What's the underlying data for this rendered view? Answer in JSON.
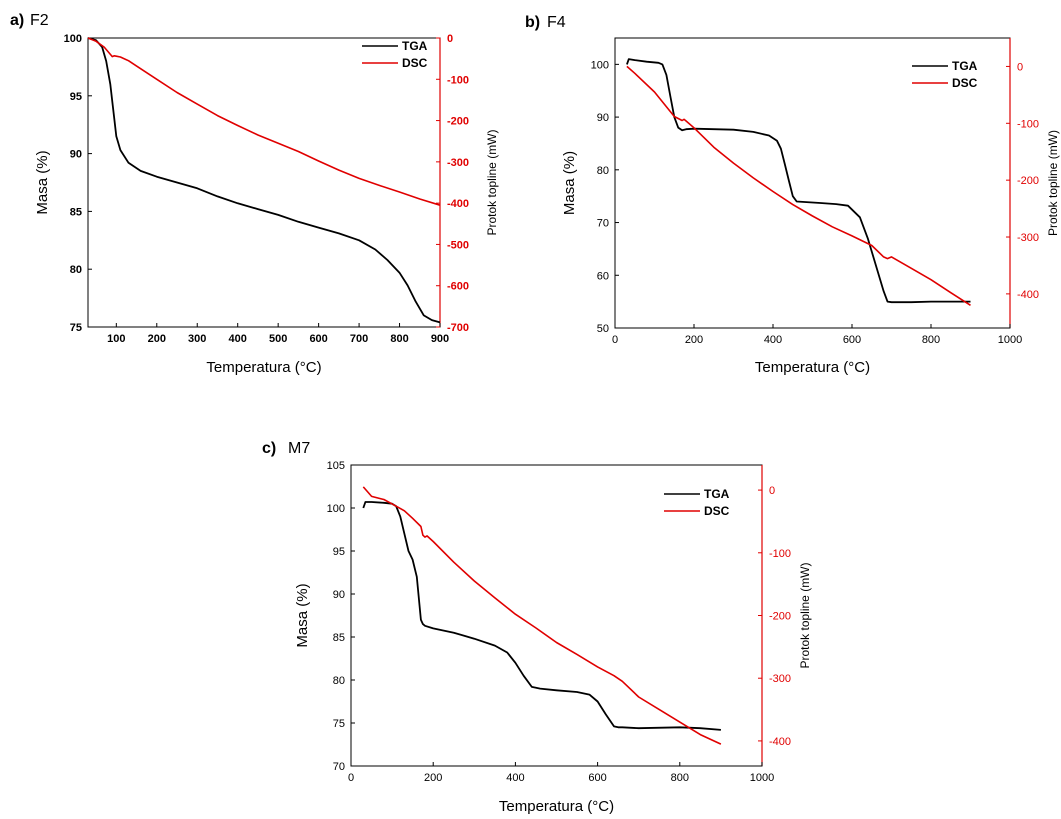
{
  "colors": {
    "tga": "#000000",
    "dsc": "#e00000"
  },
  "chart_data": [
    {
      "type": "line",
      "panel_letter": "a)",
      "panel_name": "F2",
      "xlabel": "Temperatura (°C)",
      "ylabel": "Masa (%)",
      "y2label": "Protok topline (mW)",
      "xlim": [
        30,
        900
      ],
      "ylim": [
        75,
        100
      ],
      "y2lim": [
        -700,
        0
      ],
      "xticks": [
        100,
        200,
        300,
        400,
        500,
        600,
        700,
        800,
        900
      ],
      "yticks": [
        75,
        80,
        85,
        90,
        95,
        100
      ],
      "y2ticks": [
        0,
        -100,
        -200,
        -300,
        -400,
        -500,
        -600,
        -700
      ],
      "tick_style": "bold",
      "legend": [
        "TGA",
        "DSC"
      ],
      "series": [
        {
          "name": "TGA",
          "axis": "left",
          "x": [
            30,
            50,
            65,
            75,
            85,
            90,
            95,
            100,
            110,
            130,
            160,
            200,
            250,
            300,
            350,
            400,
            450,
            500,
            550,
            600,
            650,
            700,
            740,
            770,
            800,
            820,
            840,
            860,
            880,
            900
          ],
          "y": [
            100,
            99.8,
            99.2,
            98,
            96,
            94.5,
            93,
            91.5,
            90.3,
            89.2,
            88.5,
            88,
            87.5,
            87,
            86.3,
            85.7,
            85.2,
            84.7,
            84.1,
            83.6,
            83.1,
            82.5,
            81.7,
            80.8,
            79.7,
            78.6,
            77.2,
            76,
            75.6,
            75.4
          ]
        },
        {
          "name": "DSC",
          "axis": "right",
          "x": [
            30,
            50,
            70,
            90,
            95,
            100,
            110,
            130,
            150,
            200,
            250,
            300,
            350,
            400,
            450,
            500,
            550,
            600,
            650,
            700,
            750,
            800,
            850,
            900
          ],
          "y": [
            0,
            -8,
            -22,
            -45,
            -43,
            -44,
            -46,
            -55,
            -68,
            -100,
            -132,
            -160,
            -188,
            -212,
            -235,
            -255,
            -275,
            -298,
            -320,
            -340,
            -357,
            -373,
            -390,
            -405
          ]
        }
      ]
    },
    {
      "type": "line",
      "panel_letter": "b)",
      "panel_name": "F4",
      "xlabel": "Temperatura (°C)",
      "ylabel": "Masa (%)",
      "y2label": "Protok topline (mW)",
      "xlim": [
        0,
        1000
      ],
      "ylim": [
        50,
        105
      ],
      "y2lim": [
        -460,
        50
      ],
      "xticks": [
        0,
        200,
        400,
        600,
        800,
        1000
      ],
      "yticks": [
        50,
        60,
        70,
        80,
        90,
        100
      ],
      "y2ticks": [
        0,
        -100,
        -200,
        -300,
        -400
      ],
      "tick_style": "normal",
      "legend": [
        "TGA",
        "DSC"
      ],
      "series": [
        {
          "name": "TGA",
          "axis": "left",
          "x": [
            30,
            35,
            50,
            80,
            110,
            120,
            130,
            140,
            150,
            160,
            170,
            180,
            200,
            250,
            300,
            350,
            390,
            410,
            420,
            430,
            440,
            450,
            460,
            480,
            520,
            560,
            590,
            620,
            640,
            660,
            680,
            690,
            700,
            750,
            800,
            850,
            900
          ],
          "y": [
            100,
            101,
            100.8,
            100.5,
            100.3,
            100,
            98,
            94,
            90,
            88,
            87.5,
            87.7,
            87.8,
            87.7,
            87.6,
            87.2,
            86.5,
            85.5,
            84,
            81,
            78,
            75,
            74,
            73.9,
            73.7,
            73.5,
            73.2,
            71,
            67,
            62,
            57,
            55,
            54.9,
            54.9,
            55,
            55,
            55
          ]
        },
        {
          "name": "DSC",
          "axis": "right",
          "x": [
            30,
            50,
            100,
            150,
            170,
            175,
            180,
            200,
            250,
            300,
            350,
            400,
            450,
            500,
            550,
            600,
            650,
            680,
            690,
            700,
            750,
            800,
            850,
            900
          ],
          "y": [
            0,
            -12,
            -45,
            -88,
            -95,
            -93,
            -96,
            -108,
            -142,
            -170,
            -196,
            -220,
            -243,
            -263,
            -282,
            -298,
            -315,
            -335,
            -338,
            -335,
            -355,
            -375,
            -398,
            -420
          ]
        }
      ]
    },
    {
      "type": "line",
      "panel_letter": "c)",
      "panel_name": "M7",
      "xlabel": "Temperatura (°C)",
      "ylabel": "Masa (%)",
      "y2label": "Protok topline (mW)",
      "xlim": [
        0,
        1000
      ],
      "ylim": [
        70,
        105
      ],
      "y2lim": [
        -440,
        40
      ],
      "xticks": [
        0,
        200,
        400,
        600,
        800,
        1000
      ],
      "yticks": [
        70,
        75,
        80,
        85,
        90,
        95,
        100,
        105
      ],
      "y2ticks": [
        0,
        -100,
        -200,
        -300,
        -400
      ],
      "tick_style": "normal",
      "legend": [
        "TGA",
        "DSC"
      ],
      "series": [
        {
          "name": "TGA",
          "axis": "left",
          "x": [
            30,
            35,
            50,
            80,
            100,
            110,
            120,
            130,
            140,
            150,
            160,
            170,
            175,
            180,
            200,
            250,
            300,
            350,
            380,
            400,
            420,
            440,
            450,
            460,
            500,
            550,
            580,
            600,
            620,
            640,
            650,
            660,
            700,
            800,
            850,
            900
          ],
          "y": [
            100,
            100.7,
            100.7,
            100.6,
            100.5,
            100.2,
            99,
            97,
            95,
            94,
            92,
            87,
            86.5,
            86.3,
            86,
            85.5,
            84.8,
            84,
            83.2,
            82,
            80.5,
            79.2,
            79.1,
            79,
            78.8,
            78.6,
            78.3,
            77.5,
            76,
            74.6,
            74.5,
            74.5,
            74.4,
            74.5,
            74.4,
            74.2
          ]
        },
        {
          "name": "DSC",
          "axis": "right",
          "x": [
            30,
            50,
            80,
            100,
            130,
            150,
            170,
            175,
            180,
            185,
            200,
            250,
            300,
            350,
            400,
            450,
            500,
            550,
            600,
            640,
            660,
            700,
            750,
            800,
            850,
            900
          ],
          "y": [
            5,
            -10,
            -15,
            -22,
            -33,
            -45,
            -58,
            -72,
            -75,
            -73,
            -82,
            -115,
            -145,
            -172,
            -198,
            -220,
            -243,
            -262,
            -282,
            -296,
            -305,
            -330,
            -350,
            -370,
            -390,
            -405
          ]
        }
      ]
    }
  ]
}
